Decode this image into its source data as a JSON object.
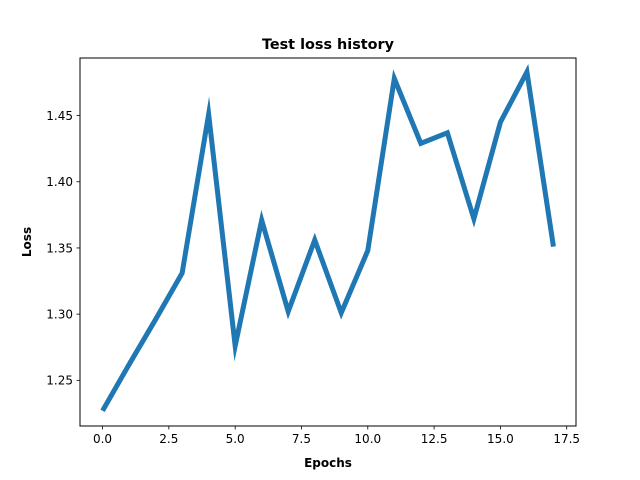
{
  "chart_data": {
    "type": "line",
    "title": "Test loss history",
    "xlabel": "Epochs",
    "ylabel": "Loss",
    "xlim": [
      -0.85,
      17.85
    ],
    "ylim": [
      1.2155,
      1.4935
    ],
    "xticks": [
      0.0,
      2.5,
      5.0,
      7.5,
      10.0,
      12.5,
      15.0,
      17.5
    ],
    "xtick_labels": [
      "0.0",
      "2.5",
      "5.0",
      "7.5",
      "10.0",
      "12.5",
      "15.0",
      "17.5"
    ],
    "yticks": [
      1.25,
      1.3,
      1.35,
      1.4,
      1.45
    ],
    "ytick_labels": [
      "1.25",
      "1.30",
      "1.35",
      "1.40",
      "1.45"
    ],
    "grid": false,
    "series": [
      {
        "color": "#1f77b4",
        "x": [
          0,
          1,
          2,
          3,
          4,
          5,
          6,
          7,
          8,
          9,
          10,
          11,
          12,
          13,
          14,
          15,
          16,
          17
        ],
        "values": [
          1.227,
          1.262,
          1.296,
          1.331,
          1.451,
          1.276,
          1.371,
          1.302,
          1.356,
          1.301,
          1.348,
          1.478,
          1.429,
          1.437,
          1.372,
          1.445,
          1.483,
          1.351
        ]
      }
    ]
  }
}
